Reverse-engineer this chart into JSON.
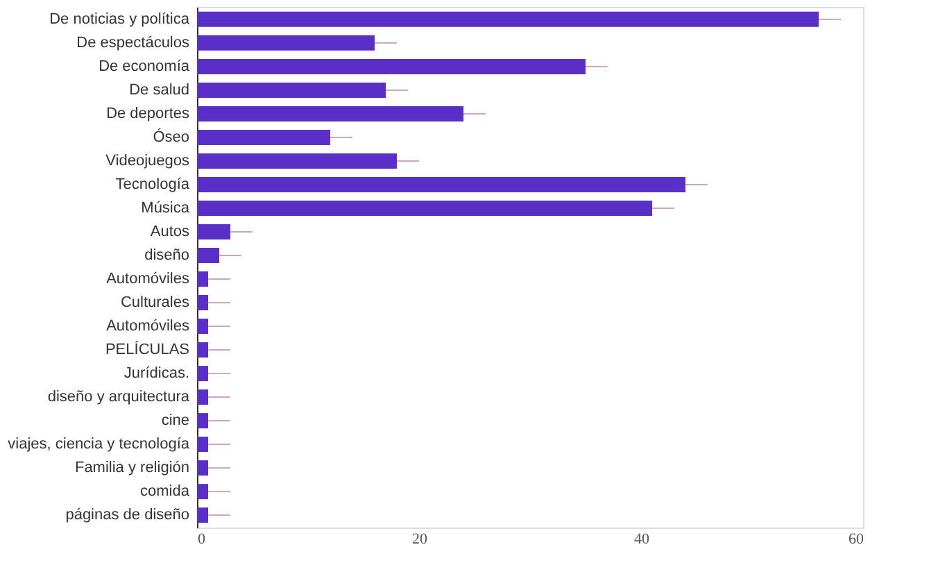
{
  "chart_data": {
    "type": "bar",
    "orientation": "horizontal",
    "categories": [
      "De noticias y política",
      "De espectáculos",
      "De economía",
      "De salud",
      "De deportes",
      "Óseo",
      "Videojuegos",
      "Tecnología",
      "Música",
      "Autos",
      "diseño",
      "Automóviles",
      "Culturales",
      "Automóviles",
      "PELÍCULAS",
      "Jurídicas.",
      "diseño y arquitectura",
      "cine",
      "viajes, ciencia y tecnología",
      "Familia y religión",
      "comida",
      "páginas de diseño"
    ],
    "values": [
      56,
      16,
      35,
      17,
      24,
      12,
      18,
      44,
      41,
      3,
      2,
      1,
      1,
      1,
      1,
      1,
      1,
      1,
      1,
      1,
      1,
      1
    ],
    "errors": [
      [
        56,
        58
      ],
      [
        16,
        18
      ],
      [
        35,
        37
      ],
      [
        17,
        19
      ],
      [
        24,
        26
      ],
      [
        12,
        14
      ],
      [
        18,
        20
      ],
      [
        44,
        46
      ],
      [
        41,
        43
      ],
      [
        3,
        5
      ],
      [
        2,
        4
      ],
      [
        1,
        3
      ],
      [
        1,
        3
      ],
      [
        1,
        3
      ],
      [
        1,
        3
      ],
      [
        1,
        3
      ],
      [
        1,
        3
      ],
      [
        1,
        3
      ],
      [
        1,
        3
      ],
      [
        1,
        3
      ],
      [
        1,
        3
      ],
      [
        1,
        3
      ]
    ],
    "color": "#5a2fc8",
    "xlim": [
      0,
      60
    ],
    "xticks": [
      0,
      20,
      40,
      60
    ],
    "grid": false
  }
}
